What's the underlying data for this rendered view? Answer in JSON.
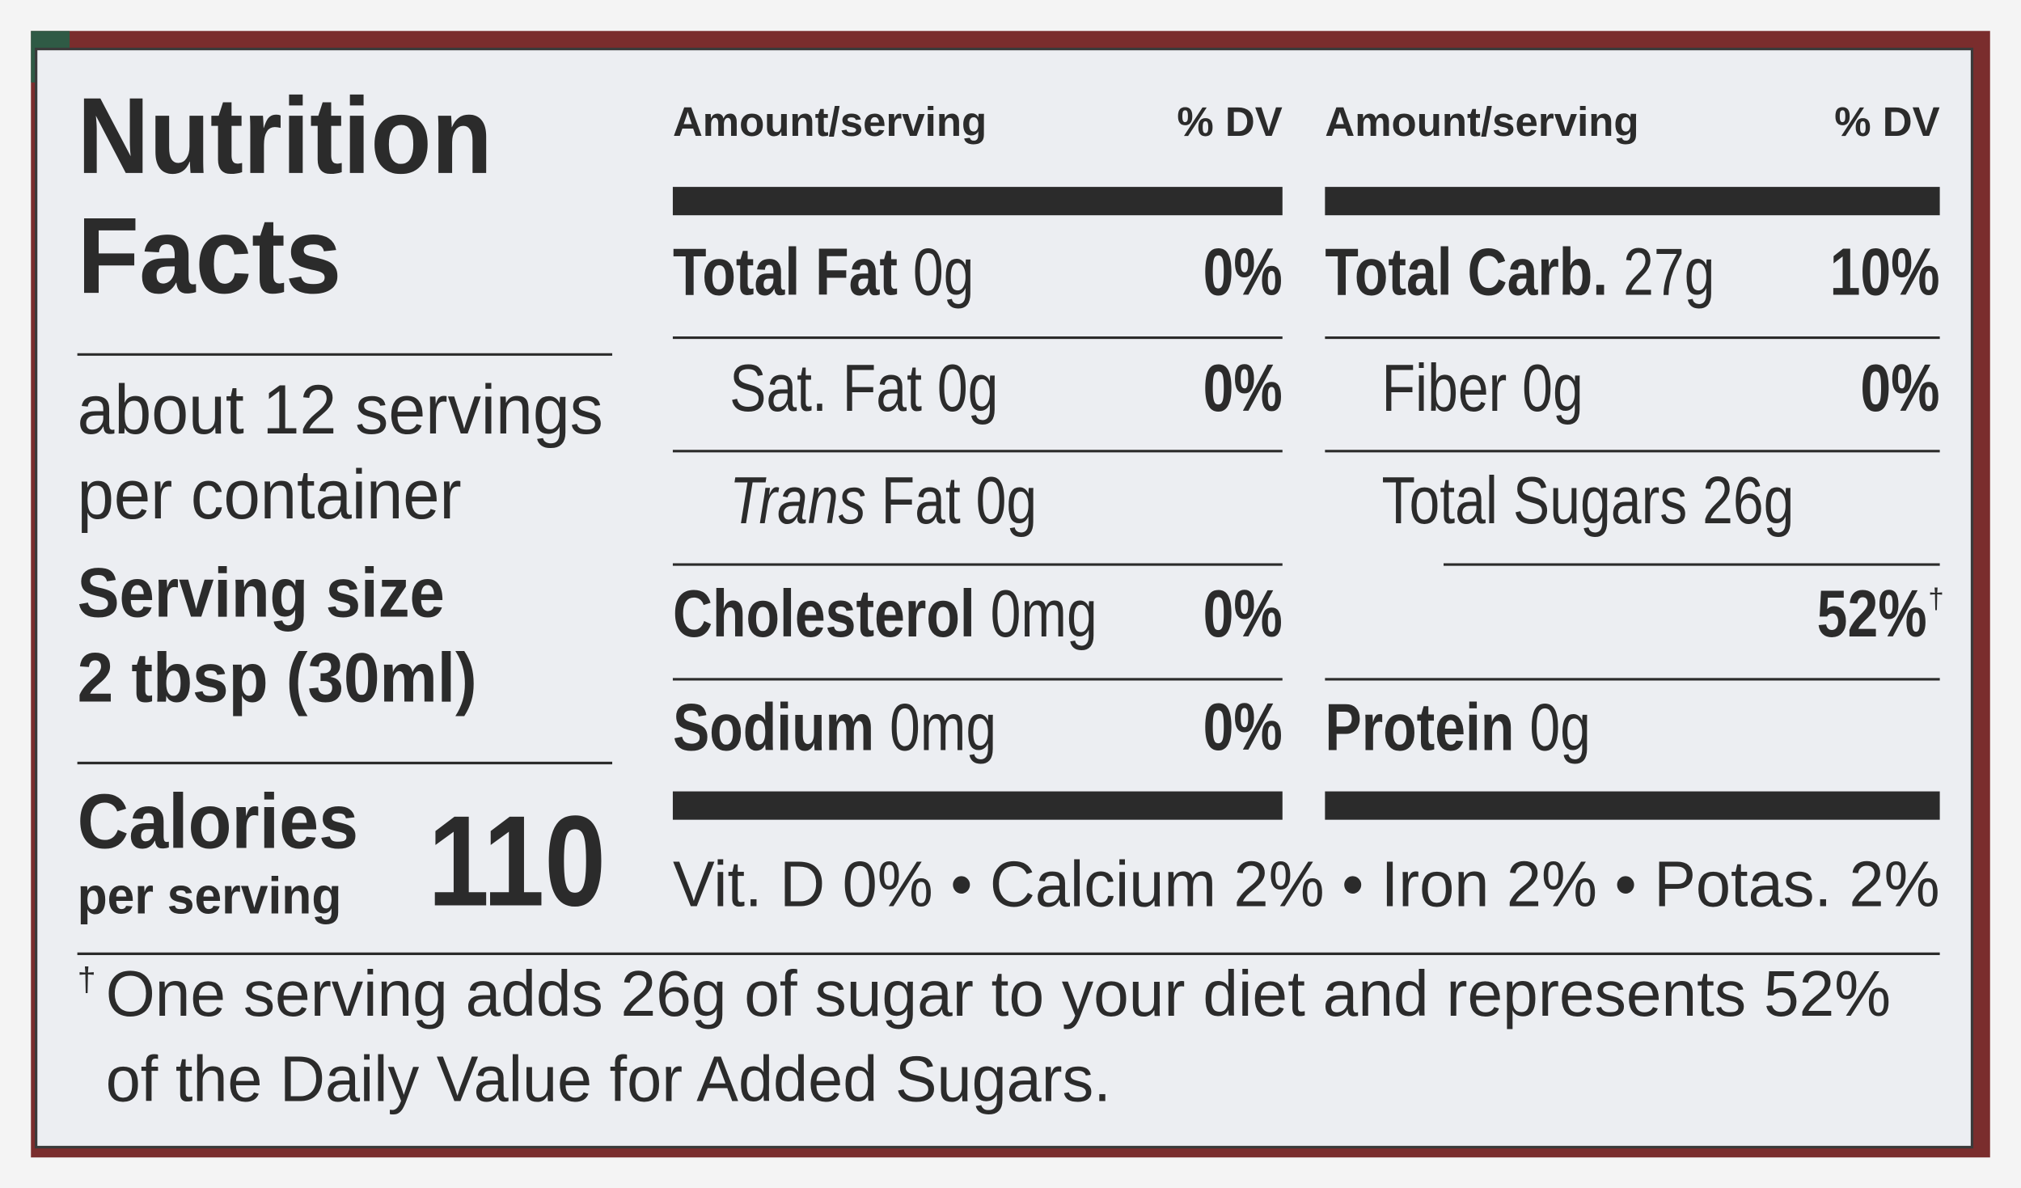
{
  "label": {
    "title": [
      "Nutrition",
      "Facts"
    ],
    "servings": [
      "about 12 servings",
      "per container"
    ],
    "serving_size": {
      "label": "Serving size",
      "amount": "2 tbsp (30ml)"
    },
    "calories": {
      "label": "Calories",
      "sublabel": "per serving",
      "value": "110"
    },
    "columns": [
      {
        "header": {
          "amount": "Amount/serving",
          "dv": "% DV"
        },
        "rows": [
          {
            "name": "Total Fat",
            "amount": "0g",
            "dv": "0%",
            "style": "main"
          },
          {
            "name": "Sat. Fat",
            "amount": "0g",
            "dv": "0%",
            "style": "sub"
          },
          {
            "name_italic": "Trans",
            "name": "Fat",
            "amount": "0g",
            "style": "sub"
          },
          {
            "name": "Cholesterol",
            "amount": "0mg",
            "dv": "0%",
            "style": "main"
          },
          {
            "name": "Sodium",
            "amount": "0mg",
            "dv": "0%",
            "style": "main"
          }
        ]
      },
      {
        "header": {
          "amount": "Amount/serving",
          "dv": "% DV"
        },
        "rows": [
          {
            "name": "Total Carb.",
            "amount": "27g",
            "dv": "10%",
            "style": "main"
          },
          {
            "name": "Fiber",
            "amount": "0g",
            "dv": "0%",
            "style": "sub"
          },
          {
            "name": "Total Sugars",
            "amount": "26g",
            "dv": "52%",
            "dv_note": "†",
            "style": "sub"
          },
          {
            "name": "Protein",
            "amount": "0g",
            "style": "main"
          }
        ]
      }
    ],
    "vitamins": {
      "separator": "•",
      "items": [
        "Vit. D 0%",
        "Calcium 2%",
        "Iron 2%",
        "Potas. 2%"
      ]
    },
    "footnote": {
      "mark": "†",
      "lines": [
        "One serving adds 26g of sugar to your diet and represents 52%",
        "of the Daily Value for Added Sugars."
      ]
    }
  }
}
